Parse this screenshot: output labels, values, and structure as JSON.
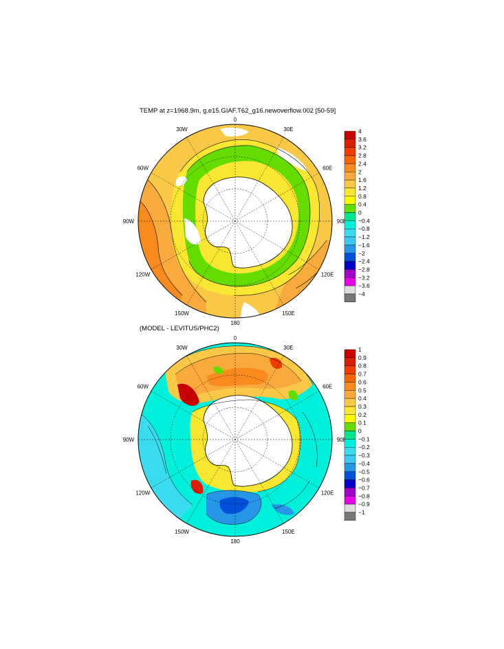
{
  "top_panel": {
    "title": "TEMP at z=1968.9m, g.e15.GIAF.T62_g16.newoverflow.002 [50-59]",
    "longitude_labels": [
      "0",
      "30E",
      "60E",
      "90E",
      "120E",
      "150E",
      "180",
      "150W",
      "120W",
      "90W",
      "60W",
      "30W"
    ],
    "colorbar_labels": [
      "4",
      "3.6",
      "3.2",
      "2.8",
      "2.4",
      "2",
      "1.6",
      "1.2",
      "0.8",
      "0.4",
      "0",
      "−0.4",
      "−0.8",
      "−1.2",
      "−1.6",
      "−2",
      "−2.4",
      "−2.8",
      "−3.2",
      "−3.6",
      "−4"
    ],
    "colorbar_colors": [
      "#c80000",
      "#dc1e00",
      "#f03c00",
      "#f86400",
      "#f88a1e",
      "#f8aa3c",
      "#f8c846",
      "#f8e632",
      "#f8f800",
      "#64dc00",
      "#00e68c",
      "#00f0dc",
      "#3cdcf0",
      "#3cc8f0",
      "#2896e6",
      "#0050dc",
      "#0000c8",
      "#a000c8",
      "#e600e6",
      "#dcdcdc",
      "#787878"
    ]
  },
  "bottom_panel": {
    "title": "(MODEL - LEVITUS/PHC2)",
    "longitude_labels": [
      "0",
      "30E",
      "60E",
      "90E",
      "120E",
      "150E",
      "180",
      "150W",
      "120W",
      "90W",
      "60W",
      "30W"
    ],
    "colorbar_labels": [
      "1",
      "0.9",
      "0.8",
      "0.7",
      "0.6",
      "0.5",
      "0.4",
      "0.3",
      "0.2",
      "0.1",
      "0",
      "−0.1",
      "−0.2",
      "−0.3",
      "−0.4",
      "−0.5",
      "−0.6",
      "−0.7",
      "−0.8",
      "−0.9",
      "−1"
    ],
    "colorbar_colors": [
      "#c80000",
      "#dc1e00",
      "#f03c00",
      "#f86400",
      "#f88a1e",
      "#f8aa3c",
      "#f8c846",
      "#f8e632",
      "#f8f800",
      "#64dc00",
      "#00e68c",
      "#00f0dc",
      "#3cdcf0",
      "#3cc8f0",
      "#2896e6",
      "#0050dc",
      "#0000c8",
      "#a000c8",
      "#e600e6",
      "#dcdcdc",
      "#787878"
    ]
  }
}
